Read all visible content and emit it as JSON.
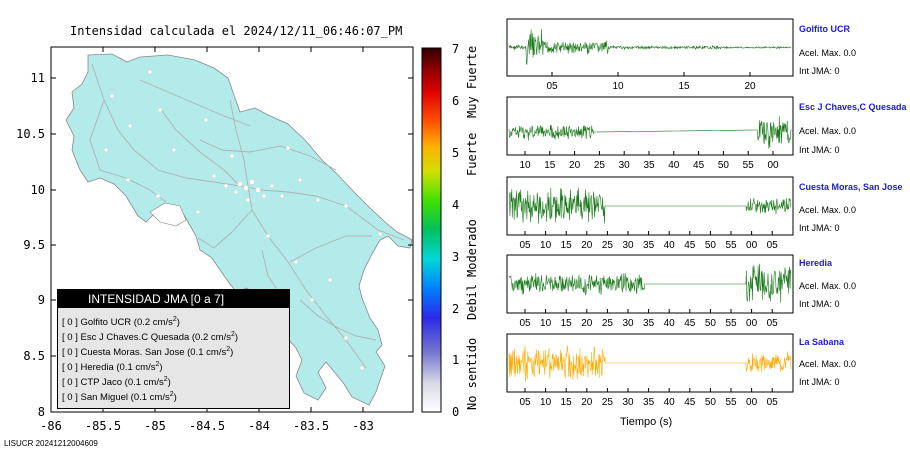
{
  "map": {
    "title": "Intensidad calculada el 2024/12/11_06:46:07_PM",
    "lat_ticks": [
      "11",
      "10.5",
      "10",
      "9.5",
      "9",
      "8.5",
      "8"
    ],
    "lon_ticks": [
      "-86",
      "-85.5",
      "-85",
      "-84.5",
      "-84",
      "-83.5",
      "-83"
    ],
    "land_color": "#b3ebeb",
    "road_color": "#b0b0b0"
  },
  "colorbar": {
    "ticks": [
      "0",
      "1",
      "2",
      "3",
      "4",
      "5",
      "6",
      "7"
    ],
    "labels": [
      "No sentido",
      "Debil",
      "Moderado",
      "Fuerte",
      "Muy Fuerte"
    ]
  },
  "legend": {
    "title": "INTENSIDAD JMA [0 a 7]",
    "items": [
      {
        "mark": "[ 0 ]",
        "text": "Golfito UCR (0.2 cm/s",
        "sup": "2",
        "close": ")"
      },
      {
        "mark": "[ 0 ]",
        "text": "Esc J Chaves.C Quesada (0.2 cm/s",
        "sup": "2",
        "close": ")"
      },
      {
        "mark": "[ 0 ]",
        "text": "Cuesta Moras. San Jose (0.1 cm/s",
        "sup": "2",
        "close": ")"
      },
      {
        "mark": "[ 0 ]",
        "text": "Heredia (0.1 cm/s",
        "sup": "2",
        "close": ")"
      },
      {
        "mark": "[ 0 ]",
        "text": "CTP Jaco (0.1 cm/s",
        "sup": "2",
        "close": ")"
      },
      {
        "mark": "[ 0 ]",
        "text": "San Miguel (0.1 cm/s",
        "sup": "2",
        "close": ")"
      }
    ]
  },
  "credit": "LISUCR 20241212004609",
  "seismograms": {
    "xlabel": "Tiempo (s)",
    "green": "#1a7a1a",
    "orange": "#ffaa00",
    "stations": [
      {
        "name": "Golfito UCR",
        "acel": "Acel. Max. 0.0",
        "jma": "Int JMA: 0",
        "ticks": [
          "05",
          "10",
          "15",
          "20"
        ],
        "color": "green"
      },
      {
        "name": "Esc J Chaves,C Quesada",
        "acel": "Acel. Max. 0.0",
        "jma": "Int JMA: 0",
        "ticks": [
          "10",
          "15",
          "20",
          "25",
          "30",
          "35",
          "40",
          "45",
          "50",
          "55",
          "00"
        ],
        "color": "green"
      },
      {
        "name": "Cuesta Moras, San Jose",
        "acel": "Acel. Max. 0.0",
        "jma": "Int JMA: 0",
        "ticks": [
          "05",
          "10",
          "15",
          "20",
          "25",
          "30",
          "35",
          "40",
          "45",
          "50",
          "55",
          "00",
          "05"
        ],
        "color": "green"
      },
      {
        "name": "Heredia",
        "acel": "Acel. Max. 0.0",
        "jma": "Int JMA: 0",
        "ticks": [
          "05",
          "10",
          "15",
          "20",
          "25",
          "30",
          "35",
          "40",
          "45",
          "50",
          "55",
          "00",
          "05"
        ],
        "color": "green"
      },
      {
        "name": "La Sabana",
        "acel": "Acel. Max. 0.0",
        "jma": "Int JMA: 0",
        "ticks": [
          "05",
          "10",
          "15",
          "20",
          "25",
          "30",
          "35",
          "40",
          "45",
          "50",
          "55",
          "00",
          "05"
        ],
        "color": "orange"
      }
    ]
  }
}
